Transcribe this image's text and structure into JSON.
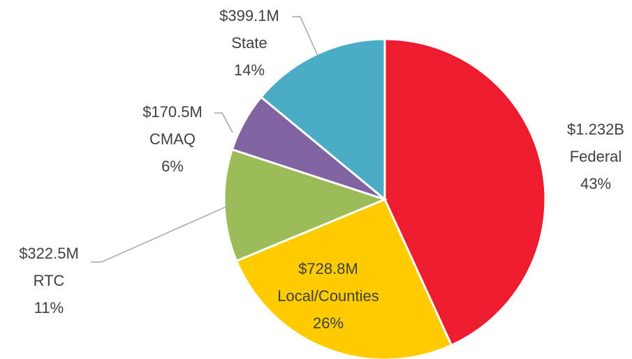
{
  "chart_data": {
    "type": "pie",
    "categories": [
      "Federal",
      "Local/Counties",
      "RTC",
      "CMAQ",
      "State"
    ],
    "values": [
      1232000000,
      728800000,
      322500000,
      170500000,
      399100000
    ],
    "value_labels": [
      "$1.232B",
      "$728.8M",
      "$322.5M",
      "$170.5M",
      "$399.1M"
    ],
    "percent_labels": [
      "43%",
      "26%",
      "11%",
      "6%",
      "14%"
    ],
    "colors": [
      "#ED1C2E",
      "#FFCC00",
      "#9BBB59",
      "#8064A2",
      "#4BACC6"
    ]
  }
}
